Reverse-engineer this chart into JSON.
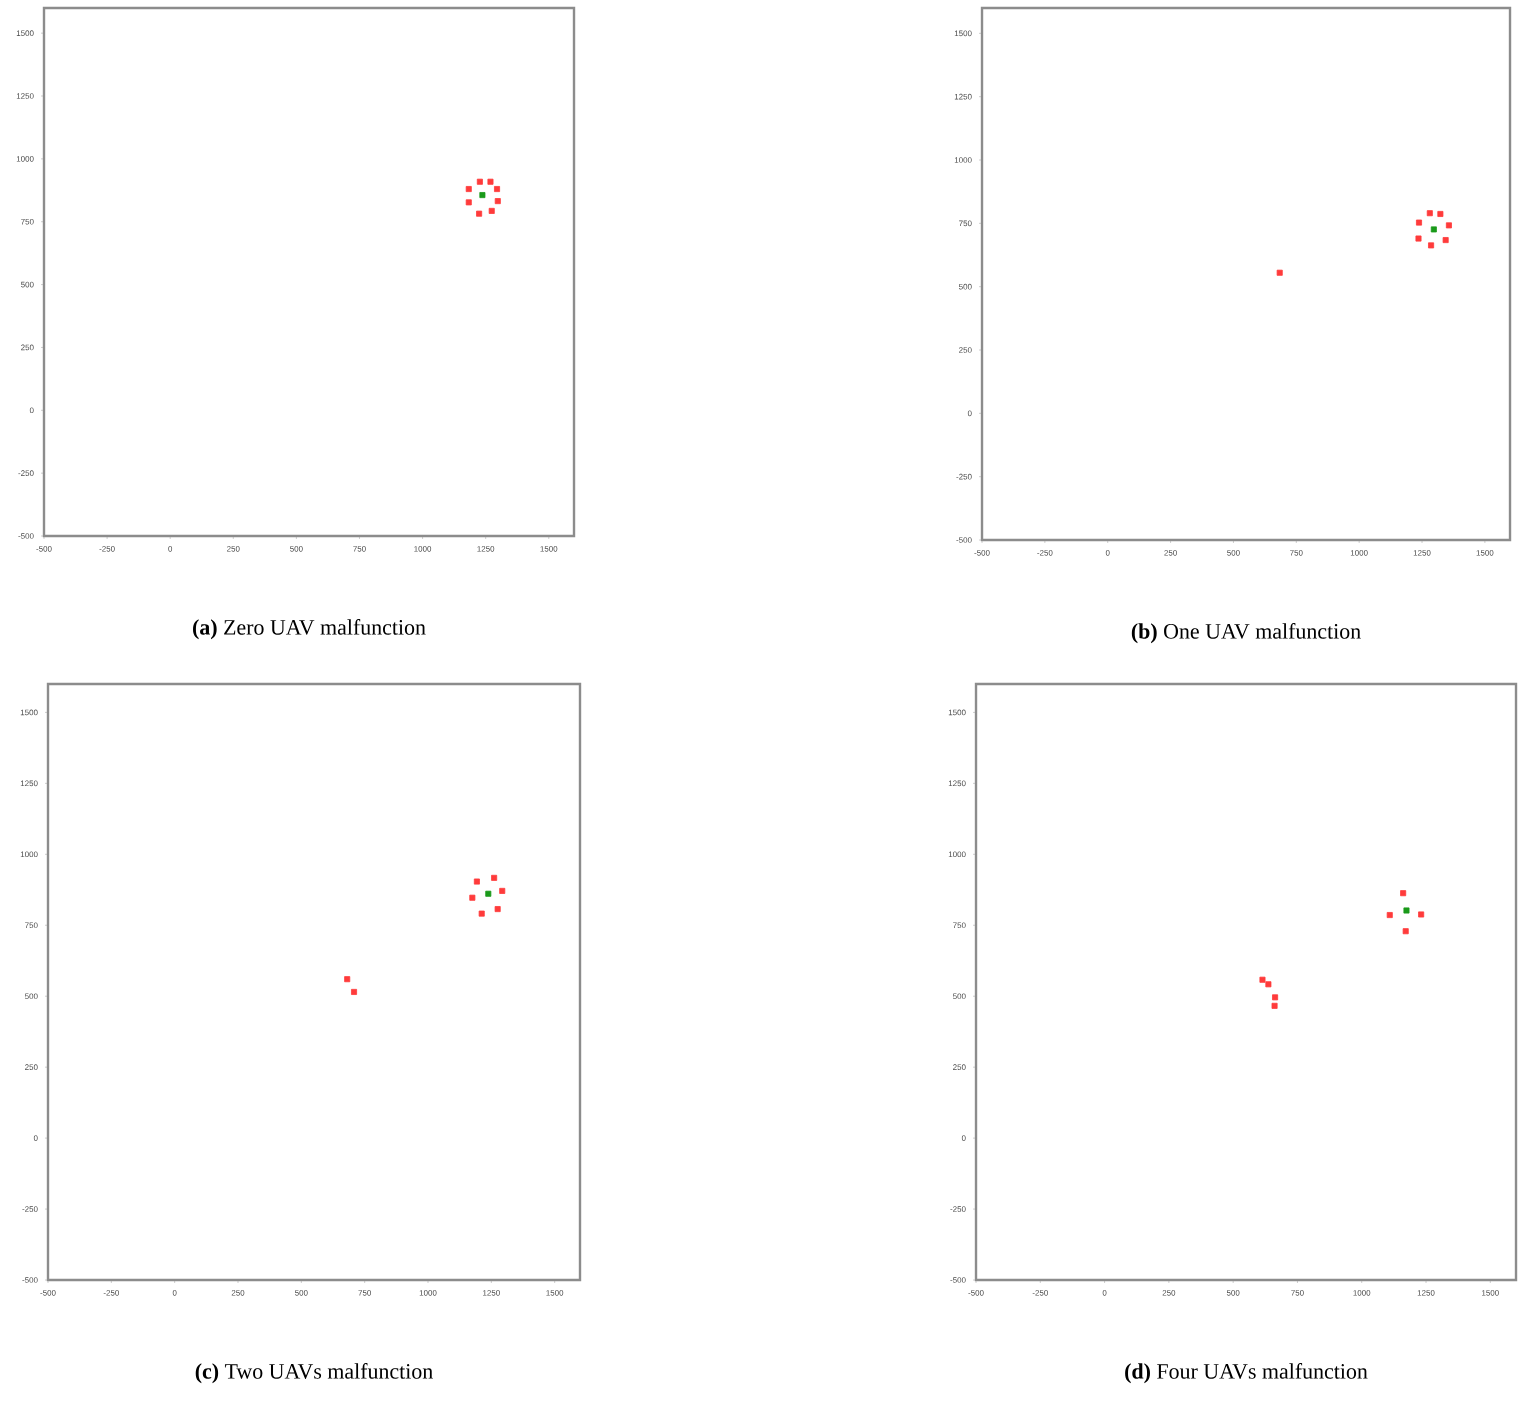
{
  "chart_data": [
    {
      "type": "scatter",
      "title": "**(a)** Zero UAV malfunction",
      "xlim": [
        -500,
        1600
      ],
      "ylim": [
        -500,
        1600
      ],
      "xticks": [
        -500,
        -250,
        0,
        250,
        500,
        750,
        1000,
        1250,
        1500
      ],
      "yticks": [
        -500,
        -250,
        0,
        250,
        500,
        750,
        1000,
        1250,
        1500
      ],
      "marker": "square",
      "series": [
        {
          "color": "#ff3b3b",
          "x": [
            1227,
            1269,
            1295,
            1298,
            1274,
            1224,
            1183,
            1183
          ],
          "values": [
            909,
            909,
            880,
            832,
            793,
            782,
            827,
            880
          ]
        },
        {
          "color": "#1a9a1a",
          "x": [
            1237
          ],
          "values": [
            856
          ]
        }
      ]
    },
    {
      "type": "scatter",
      "title": "**(b)** One UAV malfunction",
      "xlim": [
        -500,
        1600
      ],
      "ylim": [
        -500,
        1600
      ],
      "xticks": [
        -500,
        -250,
        0,
        250,
        500,
        750,
        1000,
        1250,
        1500
      ],
      "yticks": [
        -500,
        -250,
        0,
        250,
        500,
        750,
        1000,
        1250,
        1500
      ],
      "marker": "square",
      "series": [
        {
          "color": "#ff3b3b",
          "x": [
            1281,
            1323,
            1357,
            1344,
            1286,
            1236,
            1238,
            684
          ],
          "values": [
            790,
            787,
            742,
            684,
            663,
            690,
            753,
            555
          ]
        },
        {
          "color": "#1a9a1a",
          "x": [
            1297
          ],
          "values": [
            726
          ]
        }
      ]
    },
    {
      "type": "scatter",
      "title": "**(c)** Two UAVs malfunction",
      "xlim": [
        -500,
        1600
      ],
      "ylim": [
        -500,
        1600
      ],
      "xticks": [
        -500,
        -250,
        0,
        250,
        500,
        750,
        1000,
        1250,
        1500
      ],
      "yticks": [
        -500,
        -250,
        0,
        250,
        500,
        750,
        1000,
        1250,
        1500
      ],
      "marker": "square",
      "series": [
        {
          "color": "#ff3b3b",
          "x": [
            1261,
            1293,
            1275,
            1212,
            1175,
            1193,
            681,
            708
          ],
          "values": [
            917,
            871,
            807,
            791,
            847,
            904,
            560,
            515
          ]
        },
        {
          "color": "#1a9a1a",
          "x": [
            1238
          ],
          "values": [
            861
          ]
        }
      ]
    },
    {
      "type": "scatter",
      "title": "**(d)** Four UAVs malfunction",
      "xlim": [
        -500,
        1600
      ],
      "ylim": [
        -500,
        1600
      ],
      "xticks": [
        -500,
        -250,
        0,
        250,
        500,
        750,
        1000,
        1250,
        1500
      ],
      "yticks": [
        -500,
        -250,
        0,
        250,
        500,
        750,
        1000,
        1250,
        1500
      ],
      "marker": "square",
      "series": [
        {
          "color": "#ff3b3b",
          "x": [
            1161,
            1231,
            1171,
            1109,
            614,
            637,
            663,
            661
          ],
          "values": [
            863,
            788,
            729,
            786,
            558,
            542,
            496,
            466
          ]
        },
        {
          "color": "#1a9a1a",
          "x": [
            1174
          ],
          "values": [
            802
          ]
        }
      ]
    }
  ]
}
